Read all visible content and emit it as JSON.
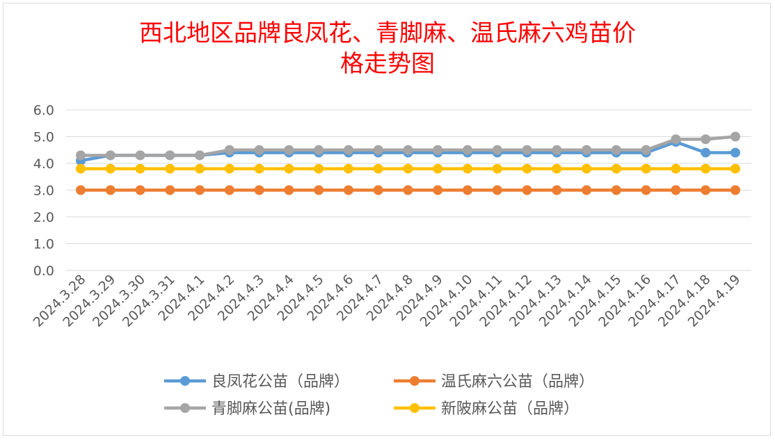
{
  "chart_data": {
    "type": "line",
    "title": "西北地区品牌良凤花、青脚麻、温氏麻六鸡苗价\n格走势图",
    "xlabel": "",
    "ylabel": "",
    "ylim": [
      0,
      6
    ],
    "yticks": [
      "0.0",
      "1.0",
      "2.0",
      "3.0",
      "4.0",
      "5.0",
      "6.0"
    ],
    "grid": true,
    "legend_position": "bottom",
    "categories": [
      "2024.3.28",
      "2024.3.29",
      "2024.3.30",
      "2024.3.31",
      "2024.4.1",
      "2024.4.2",
      "2024.4.3",
      "2024.4.4",
      "2024.4.5",
      "2024.4.6",
      "2024.4.7",
      "2024.4.8",
      "2024.4.9",
      "2024.4.10",
      "2024.4.11",
      "2024.4.12",
      "2024.4.13",
      "2024.4.14",
      "2024.4.15",
      "2024.4.16",
      "2024.4.17",
      "2024.4.18",
      "2024.4.19"
    ],
    "series": [
      {
        "name": "良凤花公苗（品牌）",
        "color": "#5b9bd5",
        "values": [
          4.1,
          4.3,
          4.3,
          4.3,
          4.3,
          4.4,
          4.4,
          4.4,
          4.4,
          4.4,
          4.4,
          4.4,
          4.4,
          4.4,
          4.4,
          4.4,
          4.4,
          4.4,
          4.4,
          4.4,
          4.8,
          4.4,
          4.4
        ]
      },
      {
        "name": "温氏麻六公苗（品牌）",
        "color": "#ed7d31",
        "values": [
          3.0,
          3.0,
          3.0,
          3.0,
          3.0,
          3.0,
          3.0,
          3.0,
          3.0,
          3.0,
          3.0,
          3.0,
          3.0,
          3.0,
          3.0,
          3.0,
          3.0,
          3.0,
          3.0,
          3.0,
          3.0,
          3.0,
          3.0
        ]
      },
      {
        "name": "青脚麻公苗(品牌)",
        "color": "#a5a5a5",
        "values": [
          4.3,
          4.3,
          4.3,
          4.3,
          4.3,
          4.5,
          4.5,
          4.5,
          4.5,
          4.5,
          4.5,
          4.5,
          4.5,
          4.5,
          4.5,
          4.5,
          4.5,
          4.5,
          4.5,
          4.5,
          4.9,
          4.9,
          5.0
        ]
      },
      {
        "name": "新陂麻公苗（品牌）",
        "color": "#ffc000",
        "values": [
          3.8,
          3.8,
          3.8,
          3.8,
          3.8,
          3.8,
          3.8,
          3.8,
          3.8,
          3.8,
          3.8,
          3.8,
          3.8,
          3.8,
          3.8,
          3.8,
          3.8,
          3.8,
          3.8,
          3.8,
          3.8,
          3.8,
          3.8
        ]
      }
    ]
  }
}
